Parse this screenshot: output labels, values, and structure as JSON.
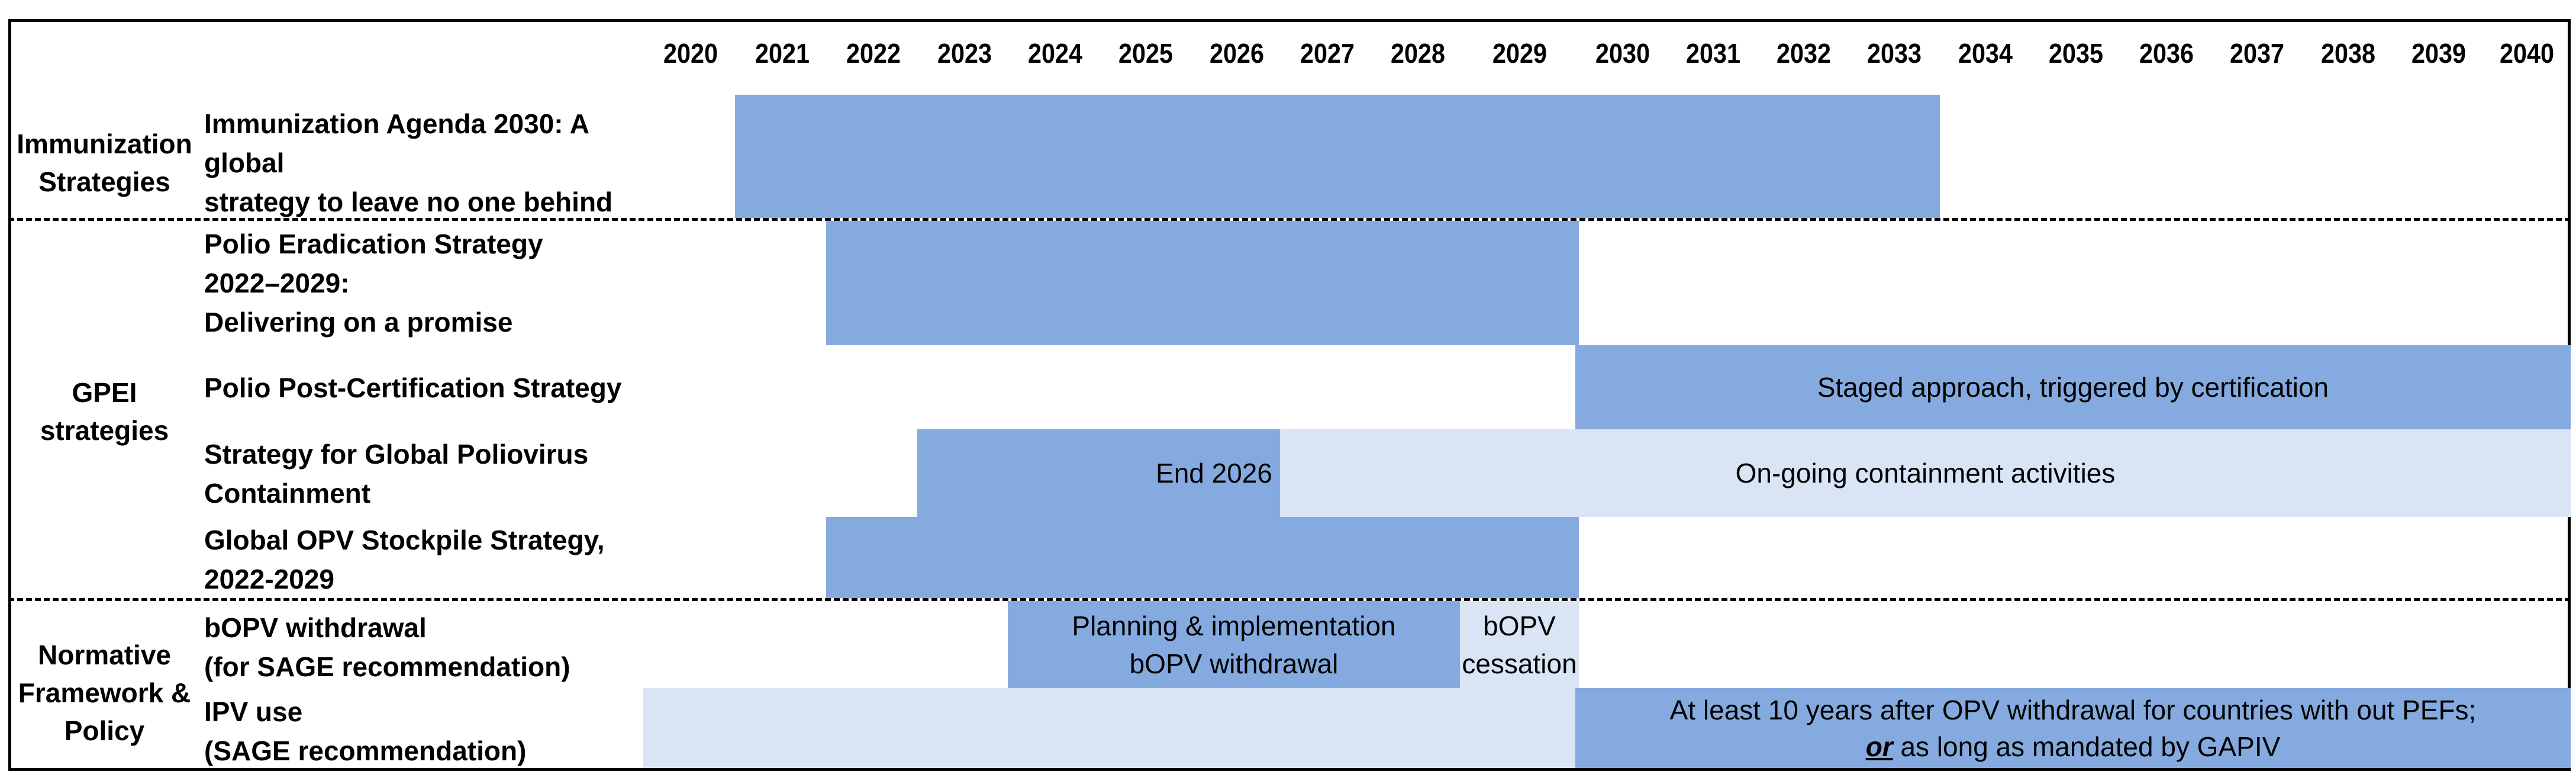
{
  "years": [
    "2020",
    "2021",
    "2022",
    "2023",
    "2024",
    "2025",
    "2026",
    "2027",
    "2028",
    "2029",
    "2030",
    "2031",
    "2032",
    "2033",
    "2034",
    "2035",
    "2036",
    "2037",
    "2038",
    "2039",
    "2040"
  ],
  "groups": {
    "immunization": "Immunization\nStrategies",
    "gpei": "GPEI\nstrategies",
    "normative": "Normative\nFramework &\nPolicy"
  },
  "rows": {
    "ia2030": "Immunization Agenda 2030: A global\nstrategy to leave no one behind",
    "polio_eradication": "Polio Eradication Strategy\n2022–2029:\nDelivering on a promise",
    "post_certification": "Polio Post-Certification Strategy",
    "containment": "Strategy for Global Poliovirus\nContainment",
    "stockpile": "Global OPV Stockpile Strategy,\n2022-2029",
    "bopv": "bOPV withdrawal\n(for SAGE recommendation)",
    "ipv": "IPV use\n(SAGE recommendation)"
  },
  "bar_text": {
    "post_cert_note": "Staged approach, triggered by certification",
    "containment_end": "End 2026",
    "containment_ongoing": "On-going containment activities",
    "bopv_planning": "Planning & implementation\nbOPV withdrawal",
    "bopv_cessation": "bOPV\ncessation",
    "ipv_note_line1": "At least 10 years after OPV withdrawal for countries with out PEFs;",
    "ipv_note_or": "or",
    "ipv_note_line2": " as long as mandated by GAPIV"
  },
  "colors": {
    "bar_dark": "#85aadf",
    "bar_light": "#d9e4f4",
    "border": "#000000"
  }
}
